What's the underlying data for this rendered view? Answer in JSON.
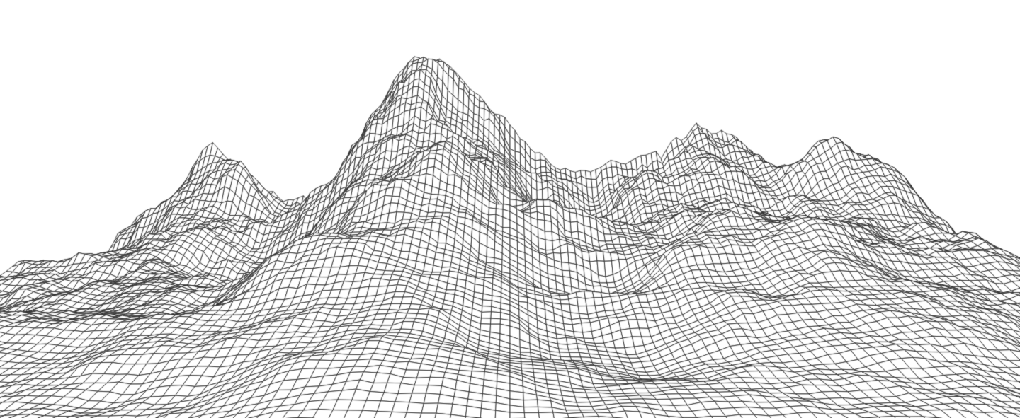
{
  "scene": {
    "background_color": "#ffffff",
    "line_color": "#2b2b2b",
    "render_style": "wireframe",
    "subject": "terrain-mesh"
  }
}
